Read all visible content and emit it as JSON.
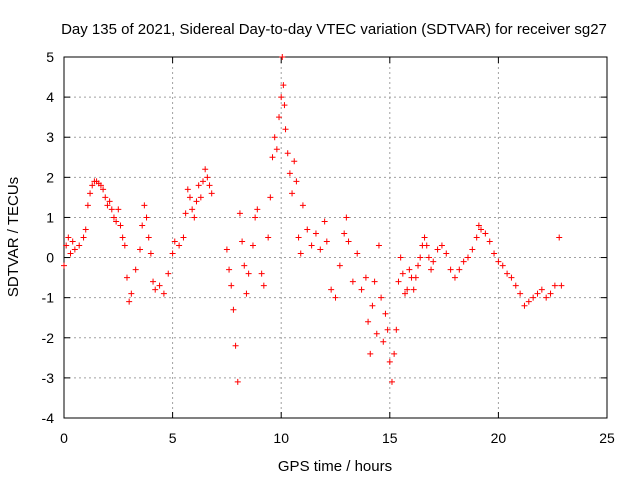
{
  "chart_data": {
    "type": "scatter",
    "title": "Day 135 of 2021, Sidereal Day-to-day VTEC variation (SDTVAR) for receiver sg27",
    "xlabel": "GPS time / hours",
    "ylabel": "SDTVAR / TECUs",
    "xlim": [
      0,
      25
    ],
    "ylim": [
      -4,
      5
    ],
    "xticks": [
      0,
      5,
      10,
      15,
      20,
      25
    ],
    "yticks": [
      -4,
      -3,
      -2,
      -1,
      0,
      1,
      2,
      3,
      4,
      5
    ],
    "grid": true,
    "marker": "+",
    "color": "#ff0000",
    "series": [
      {
        "name": "sg27",
        "points": [
          [
            0.0,
            -0.2
          ],
          [
            0.1,
            0.3
          ],
          [
            0.2,
            0.5
          ],
          [
            0.3,
            0.1
          ],
          [
            0.4,
            0.4
          ],
          [
            0.5,
            0.2
          ],
          [
            0.7,
            0.3
          ],
          [
            0.9,
            0.5
          ],
          [
            1.0,
            0.7
          ],
          [
            1.1,
            1.3
          ],
          [
            1.2,
            1.6
          ],
          [
            1.3,
            1.8
          ],
          [
            1.4,
            1.9
          ],
          [
            1.5,
            1.9
          ],
          [
            1.6,
            1.85
          ],
          [
            1.7,
            1.8
          ],
          [
            1.8,
            1.7
          ],
          [
            1.9,
            1.5
          ],
          [
            2.0,
            1.3
          ],
          [
            2.1,
            1.4
          ],
          [
            2.2,
            1.2
          ],
          [
            2.3,
            1.0
          ],
          [
            2.4,
            0.9
          ],
          [
            2.5,
            1.2
          ],
          [
            2.6,
            0.8
          ],
          [
            2.7,
            0.5
          ],
          [
            2.8,
            0.3
          ],
          [
            2.9,
            -0.5
          ],
          [
            3.0,
            -1.1
          ],
          [
            3.1,
            -0.9
          ],
          [
            3.3,
            -0.3
          ],
          [
            3.5,
            0.2
          ],
          [
            3.6,
            0.8
          ],
          [
            3.7,
            1.3
          ],
          [
            3.8,
            1.0
          ],
          [
            3.9,
            0.5
          ],
          [
            4.0,
            0.1
          ],
          [
            4.1,
            -0.6
          ],
          [
            4.2,
            -0.8
          ],
          [
            4.4,
            -0.7
          ],
          [
            4.6,
            -0.9
          ],
          [
            4.8,
            -0.4
          ],
          [
            5.0,
            0.1
          ],
          [
            5.1,
            0.4
          ],
          [
            5.3,
            0.3
          ],
          [
            5.5,
            0.5
          ],
          [
            5.6,
            1.1
          ],
          [
            5.7,
            1.7
          ],
          [
            5.8,
            1.5
          ],
          [
            5.9,
            1.2
          ],
          [
            6.0,
            1.0
          ],
          [
            6.1,
            1.4
          ],
          [
            6.2,
            1.8
          ],
          [
            6.3,
            1.5
          ],
          [
            6.4,
            1.9
          ],
          [
            6.5,
            2.2
          ],
          [
            6.6,
            2.0
          ],
          [
            6.7,
            1.8
          ],
          [
            6.8,
            1.6
          ],
          [
            7.5,
            0.2
          ],
          [
            7.6,
            -0.3
          ],
          [
            7.7,
            -0.7
          ],
          [
            7.8,
            -1.3
          ],
          [
            7.9,
            -2.2
          ],
          [
            8.0,
            -3.1
          ],
          [
            8.1,
            1.1
          ],
          [
            8.2,
            0.4
          ],
          [
            8.3,
            -0.2
          ],
          [
            8.4,
            -0.9
          ],
          [
            8.5,
            -0.4
          ],
          [
            8.7,
            0.3
          ],
          [
            8.8,
            1.0
          ],
          [
            8.9,
            1.2
          ],
          [
            9.1,
            -0.4
          ],
          [
            9.2,
            -0.7
          ],
          [
            9.4,
            0.5
          ],
          [
            9.5,
            1.5
          ],
          [
            9.6,
            2.5
          ],
          [
            9.7,
            3.0
          ],
          [
            9.8,
            2.7
          ],
          [
            9.9,
            3.5
          ],
          [
            10.0,
            4.0
          ],
          [
            10.05,
            5.0
          ],
          [
            10.1,
            4.3
          ],
          [
            10.15,
            3.8
          ],
          [
            10.2,
            3.2
          ],
          [
            10.3,
            2.6
          ],
          [
            10.4,
            2.1
          ],
          [
            10.5,
            1.6
          ],
          [
            10.6,
            2.4
          ],
          [
            10.7,
            1.9
          ],
          [
            10.8,
            0.5
          ],
          [
            10.9,
            0.1
          ],
          [
            11.0,
            1.3
          ],
          [
            11.2,
            0.7
          ],
          [
            11.4,
            0.3
          ],
          [
            11.6,
            0.6
          ],
          [
            11.8,
            0.2
          ],
          [
            12.0,
            0.9
          ],
          [
            12.1,
            0.4
          ],
          [
            12.3,
            -0.8
          ],
          [
            12.5,
            -1.0
          ],
          [
            12.7,
            -0.2
          ],
          [
            12.9,
            0.6
          ],
          [
            13.0,
            1.0
          ],
          [
            13.1,
            0.4
          ],
          [
            13.3,
            -0.6
          ],
          [
            13.5,
            0.1
          ],
          [
            13.7,
            -0.8
          ],
          [
            13.9,
            -0.5
          ],
          [
            14.0,
            -1.6
          ],
          [
            14.1,
            -2.4
          ],
          [
            14.2,
            -1.2
          ],
          [
            14.3,
            -0.6
          ],
          [
            14.4,
            -1.9
          ],
          [
            14.5,
            0.3
          ],
          [
            14.6,
            -1.0
          ],
          [
            14.7,
            -2.1
          ],
          [
            14.8,
            -1.4
          ],
          [
            14.9,
            -1.8
          ],
          [
            15.0,
            -2.6
          ],
          [
            15.1,
            -3.1
          ],
          [
            15.2,
            -2.4
          ],
          [
            15.3,
            -1.8
          ],
          [
            15.4,
            -0.6
          ],
          [
            15.5,
            0.0
          ],
          [
            15.6,
            -0.4
          ],
          [
            15.7,
            -0.9
          ],
          [
            15.8,
            -0.8
          ],
          [
            15.9,
            -0.3
          ],
          [
            16.0,
            -0.5
          ],
          [
            16.1,
            -0.8
          ],
          [
            16.2,
            -0.5
          ],
          [
            16.3,
            -0.2
          ],
          [
            16.4,
            0.0
          ],
          [
            16.5,
            0.3
          ],
          [
            16.6,
            0.5
          ],
          [
            16.7,
            0.3
          ],
          [
            16.8,
            0.0
          ],
          [
            16.9,
            -0.3
          ],
          [
            17.0,
            -0.1
          ],
          [
            17.2,
            0.2
          ],
          [
            17.4,
            0.3
          ],
          [
            17.6,
            0.1
          ],
          [
            17.8,
            -0.3
          ],
          [
            18.0,
            -0.5
          ],
          [
            18.2,
            -0.3
          ],
          [
            18.4,
            -0.1
          ],
          [
            18.6,
            0.0
          ],
          [
            18.8,
            0.2
          ],
          [
            19.0,
            0.5
          ],
          [
            19.1,
            0.8
          ],
          [
            19.2,
            0.7
          ],
          [
            19.4,
            0.6
          ],
          [
            19.6,
            0.4
          ],
          [
            19.8,
            0.1
          ],
          [
            20.0,
            -0.1
          ],
          [
            20.2,
            -0.2
          ],
          [
            20.4,
            -0.4
          ],
          [
            20.6,
            -0.5
          ],
          [
            20.8,
            -0.7
          ],
          [
            21.0,
            -0.9
          ],
          [
            21.2,
            -1.2
          ],
          [
            21.4,
            -1.1
          ],
          [
            21.6,
            -1.0
          ],
          [
            21.8,
            -0.9
          ],
          [
            22.0,
            -0.8
          ],
          [
            22.2,
            -1.0
          ],
          [
            22.4,
            -0.9
          ],
          [
            22.6,
            -0.7
          ],
          [
            22.8,
            0.5
          ],
          [
            22.9,
            -0.7
          ]
        ]
      }
    ]
  }
}
